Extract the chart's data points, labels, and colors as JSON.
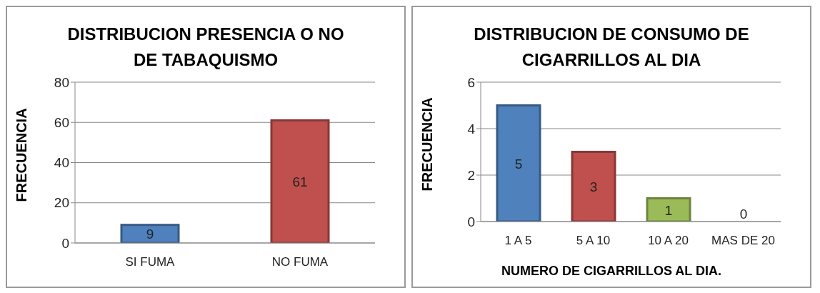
{
  "chart_data": [
    {
      "type": "bar",
      "title": "DISTRIBUCION PRESENCIA O NO DE TABAQUISMO",
      "ylabel": "FRECUENCIA",
      "categories": [
        "SI FUMA",
        "NO FUMA"
      ],
      "values": [
        9,
        61
      ],
      "colors": [
        "#4f81bd",
        "#c0504d"
      ],
      "ylim": [
        0,
        80
      ],
      "yticks": [
        0,
        20,
        40,
        60,
        80
      ],
      "grid": "y",
      "data_labels": true,
      "legend": false
    },
    {
      "type": "bar",
      "title": "DISTRIBUCION DE CONSUMO DE CIGARRILLOS AL DIA",
      "ylabel": "FRECUENCIA",
      "xlabel": "NUMERO DE CIGARRILLOS AL DIA.",
      "categories": [
        "1 A 5",
        "5 A 10",
        "10 A 20",
        "MAS DE 20"
      ],
      "values": [
        5,
        3,
        1,
        0
      ],
      "colors": [
        "#4f81bd",
        "#c0504d",
        "#9bbb59",
        "#8064a2"
      ],
      "ylim": [
        0,
        6
      ],
      "yticks": [
        0,
        2,
        4,
        6
      ],
      "grid": "y",
      "data_labels": true,
      "legend": false
    }
  ]
}
